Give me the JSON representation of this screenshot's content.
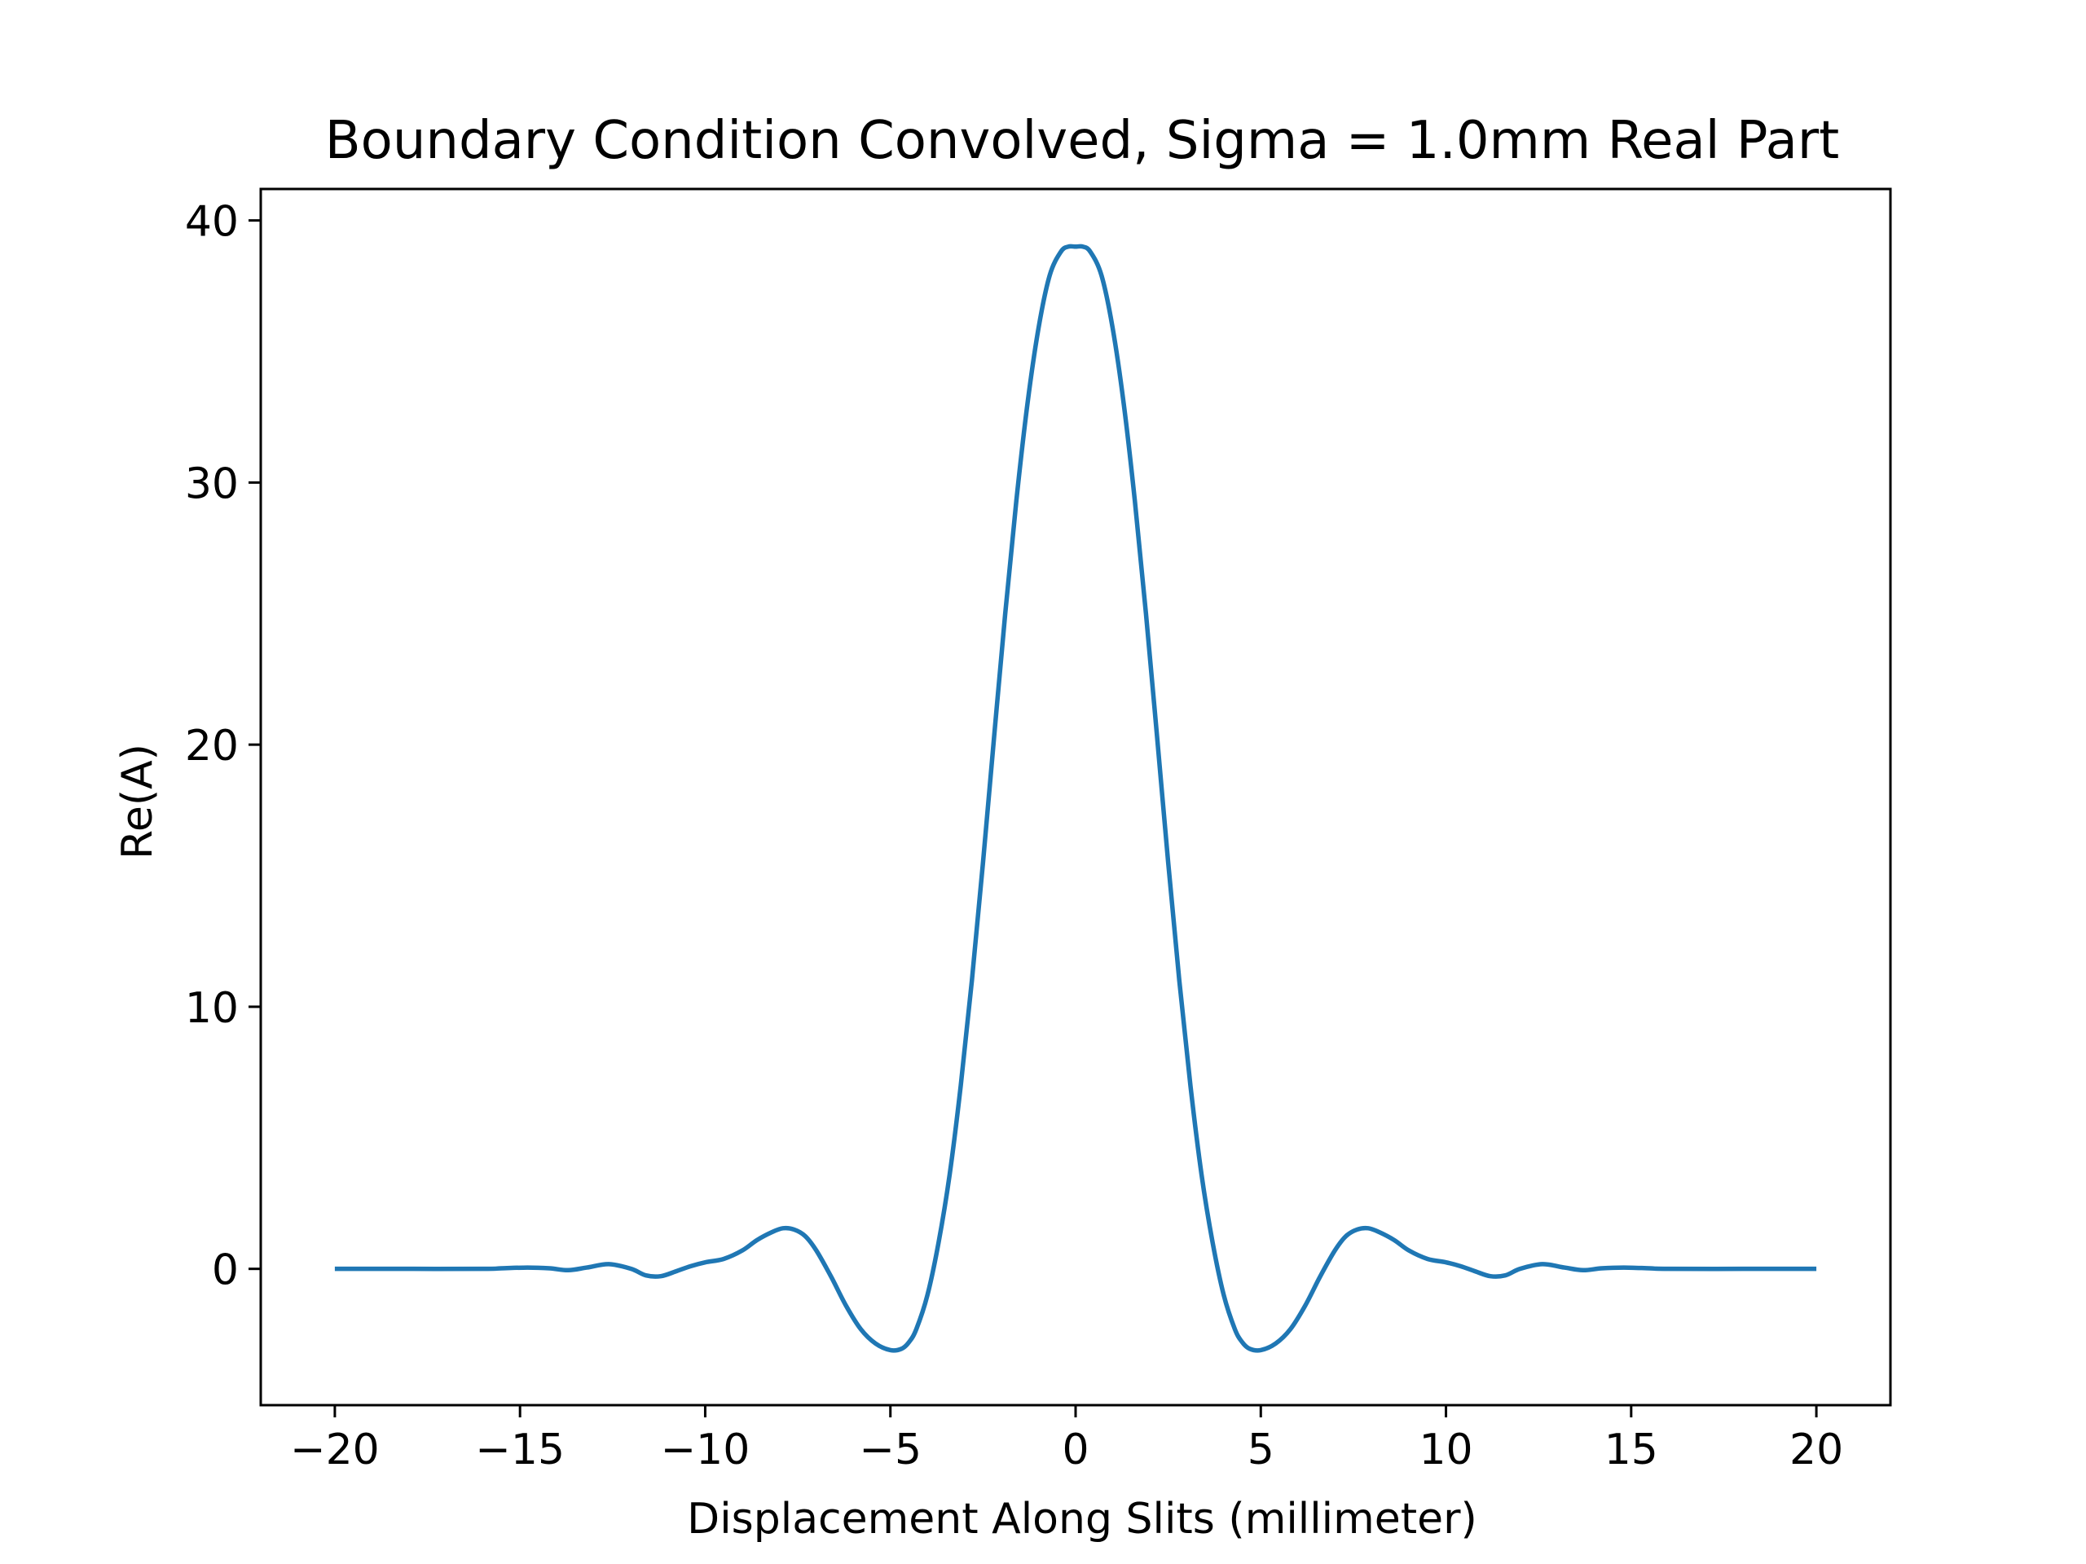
{
  "chart_data": {
    "type": "line",
    "title": "Boundary Condition Convolved, Sigma = 1.0mm Real Part",
    "xlabel": "Displacement Along Slits (millimeter)",
    "ylabel": "Re(A)",
    "xlim": [
      -22,
      22
    ],
    "ylim": [
      -5.2,
      41.2
    ],
    "x_ticks": [
      -20,
      -15,
      -10,
      -5,
      0,
      5,
      10,
      15,
      20
    ],
    "x_tick_labels": [
      "−20",
      "−15",
      "−10",
      "−5",
      "0",
      "5",
      "10",
      "15",
      "20"
    ],
    "y_ticks": [
      0,
      10,
      20,
      30,
      40
    ],
    "y_tick_labels": [
      "0",
      "10",
      "20",
      "30",
      "40"
    ],
    "grid": false,
    "line_color": "#1f77b4",
    "series": [
      {
        "x": [
          -20,
          -18,
          -16,
          -15.5,
          -14.8,
          -14.2,
          -13.7,
          -13.2,
          -12.6,
          -12.0,
          -11.6,
          -11.2,
          -10.8,
          -10.4,
          -10.0,
          -9.5,
          -9.0,
          -8.6,
          -8.2,
          -7.9,
          -7.6,
          -7.3,
          -7.0,
          -6.6,
          -6.2,
          -5.8,
          -5.4,
          -5.0,
          -4.7,
          -4.5,
          -4.3,
          -4.0,
          -3.7,
          -3.4,
          -3.1,
          -2.8,
          -2.5,
          -2.2,
          -1.9,
          -1.6,
          -1.3,
          -1.0,
          -0.7,
          -0.4,
          -0.2,
          0,
          0.2,
          0.4,
          0.7,
          1.0,
          1.3,
          1.6,
          1.9,
          2.2,
          2.5,
          2.8,
          3.1,
          3.4,
          3.7,
          4.0,
          4.3,
          4.5,
          4.7,
          5.0,
          5.4,
          5.8,
          6.2,
          6.6,
          7.0,
          7.3,
          7.6,
          7.9,
          8.2,
          8.6,
          9.0,
          9.5,
          10.0,
          10.4,
          10.8,
          11.2,
          11.6,
          12.0,
          12.6,
          13.2,
          13.7,
          14.2,
          14.8,
          15.5,
          16,
          18,
          20
        ],
        "y": [
          0,
          0,
          0,
          0.02,
          0.05,
          0.02,
          -0.05,
          0.05,
          0.18,
          0.0,
          -0.25,
          -0.28,
          -0.1,
          0.1,
          0.25,
          0.38,
          0.7,
          1.1,
          1.4,
          1.55,
          1.5,
          1.25,
          0.7,
          -0.3,
          -1.4,
          -2.3,
          -2.85,
          -3.1,
          -3.05,
          -2.8,
          -2.3,
          -1.0,
          1.0,
          3.6,
          7.0,
          11.0,
          15.5,
          20.3,
          25.0,
          29.3,
          33.0,
          35.9,
          37.9,
          38.8,
          39.0,
          39.0,
          39.0,
          38.8,
          37.9,
          35.9,
          33.0,
          29.3,
          25.0,
          20.3,
          15.5,
          11.0,
          7.0,
          3.6,
          1.0,
          -1.0,
          -2.3,
          -2.8,
          -3.05,
          -3.1,
          -2.85,
          -2.3,
          -1.4,
          -0.3,
          0.7,
          1.25,
          1.5,
          1.55,
          1.4,
          1.1,
          0.7,
          0.38,
          0.25,
          0.1,
          -0.1,
          -0.28,
          -0.25,
          0.0,
          0.18,
          0.05,
          -0.05,
          0.02,
          0.05,
          0.02,
          0,
          0,
          0
        ]
      }
    ]
  }
}
